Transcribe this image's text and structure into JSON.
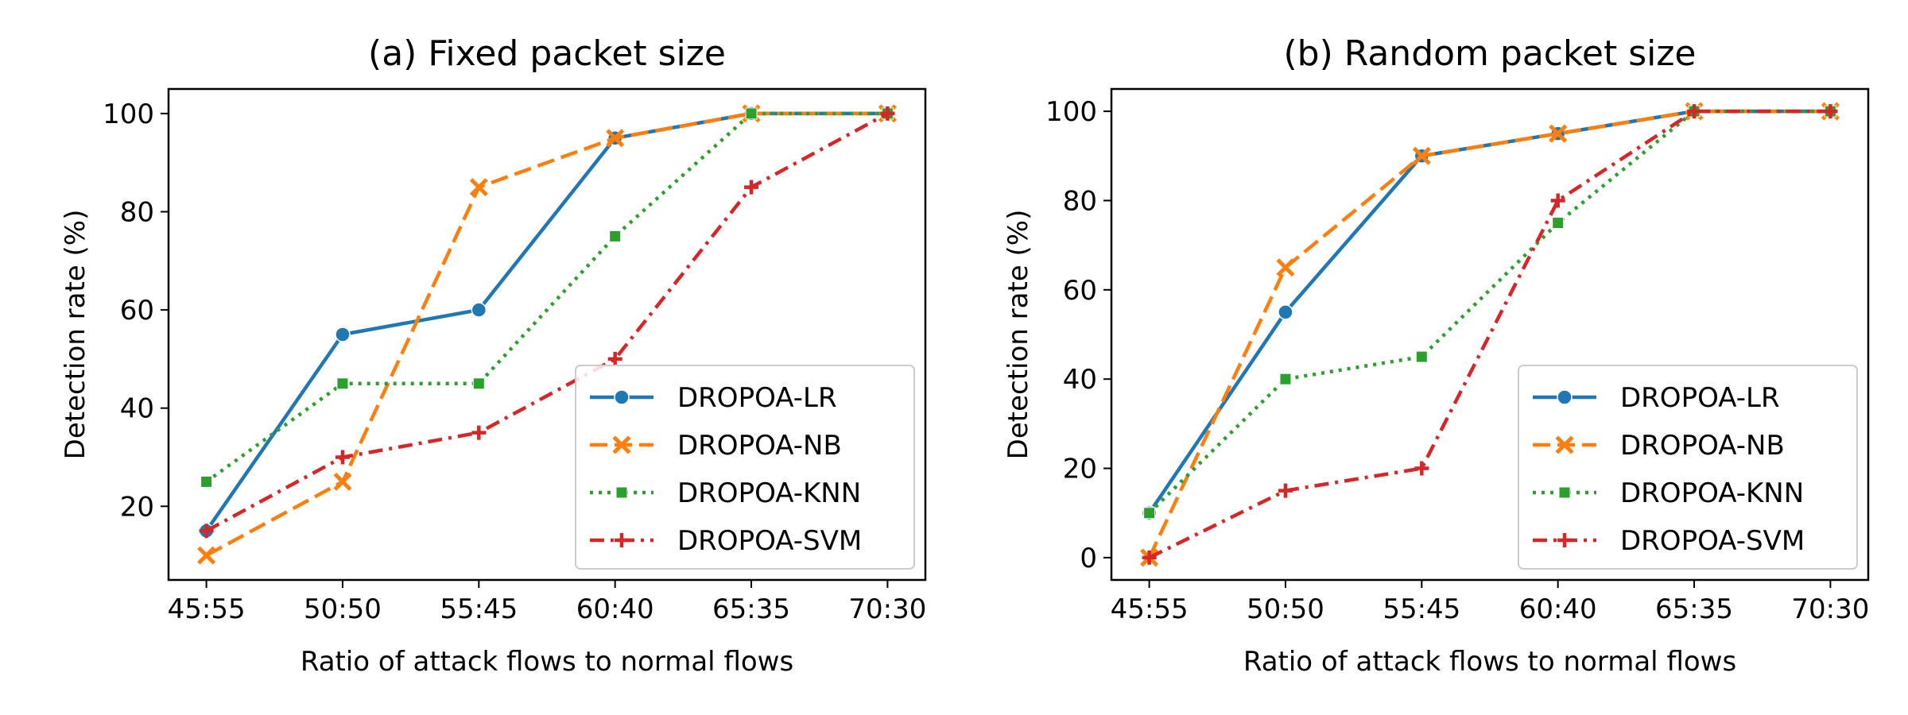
{
  "chart_data": [
    {
      "type": "line",
      "title": "(a) Fixed packet size",
      "xlabel": "Ratio of attack flows to normal flows",
      "ylabel": "Detection rate (%)",
      "categories": [
        "45:55",
        "50:50",
        "55:45",
        "60:40",
        "65:35",
        "70:30"
      ],
      "ylim": [
        5,
        105
      ],
      "yticks": [
        20,
        40,
        60,
        80,
        100
      ],
      "grid": false,
      "legend_position": "lower-right",
      "series": [
        {
          "name": "DROPOA-LR",
          "color": "#1f77b4",
          "marker": "circle",
          "dash": "solid",
          "values": [
            15,
            55,
            60,
            95,
            100,
            100
          ]
        },
        {
          "name": "DROPOA-NB",
          "color": "#ff7f0e",
          "marker": "x",
          "dash": "dashed",
          "values": [
            10,
            25,
            85,
            95,
            100,
            100
          ]
        },
        {
          "name": "DROPOA-KNN",
          "color": "#2ca02c",
          "marker": "square",
          "dash": "dotted",
          "values": [
            25,
            45,
            45,
            75,
            100,
            100
          ]
        },
        {
          "name": "DROPOA-SVM",
          "color": "#d62728",
          "marker": "plus",
          "dash": "dashdot",
          "values": [
            15,
            30,
            35,
            50,
            85,
            100
          ]
        }
      ]
    },
    {
      "type": "line",
      "title": "(b) Random packet size",
      "xlabel": "Ratio of attack flows to normal flows",
      "ylabel": "Detection rate (%)",
      "categories": [
        "45:55",
        "50:50",
        "55:45",
        "60:40",
        "65:35",
        "70:30"
      ],
      "ylim": [
        -5,
        105
      ],
      "yticks": [
        0,
        20,
        40,
        60,
        80,
        100
      ],
      "grid": false,
      "legend_position": "lower-right",
      "series": [
        {
          "name": "DROPOA-LR",
          "color": "#1f77b4",
          "marker": "circle",
          "dash": "solid",
          "values": [
            10,
            55,
            90,
            95,
            100,
            100
          ]
        },
        {
          "name": "DROPOA-NB",
          "color": "#ff7f0e",
          "marker": "x",
          "dash": "dashed",
          "values": [
            0,
            65,
            90,
            95,
            100,
            100
          ]
        },
        {
          "name": "DROPOA-KNN",
          "color": "#2ca02c",
          "marker": "square",
          "dash": "dotted",
          "values": [
            10,
            40,
            45,
            75,
            100,
            100
          ]
        },
        {
          "name": "DROPOA-SVM",
          "color": "#d62728",
          "marker": "plus",
          "dash": "dashdot",
          "values": [
            0,
            15,
            20,
            80,
            100,
            100
          ]
        }
      ]
    }
  ]
}
